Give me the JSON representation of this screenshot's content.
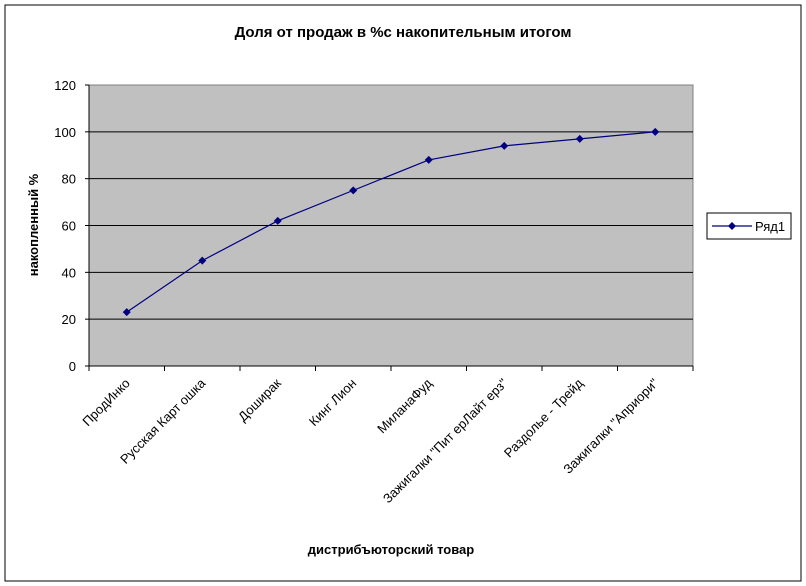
{
  "chart_data": {
    "type": "line",
    "title": "Доля от продаж в %с накопительным итогом",
    "xlabel": "дистрибъюторский товар",
    "ylabel": "накопленный %",
    "categories": [
      "ПродИнко",
      "Русская Карт ошка",
      "Доширак",
      "Кинг Лион",
      "МиланаФуд",
      "Зажигалки \"Пит ерЛайт ерз\"",
      "Раздолье - Трейд",
      "Зажигалки \"Априори\""
    ],
    "series": [
      {
        "name": "Ряд1",
        "values": [
          23,
          45,
          62,
          75,
          88,
          94,
          97,
          100
        ]
      }
    ],
    "ylim": [
      0,
      120
    ],
    "yticks": [
      "0",
      "20",
      "40",
      "60",
      "80",
      "100",
      "120"
    ],
    "grid": true,
    "legend": "right",
    "colors": {
      "series": "#000080",
      "plot_bg": "#c0c0c0",
      "grid": "#000000"
    }
  }
}
